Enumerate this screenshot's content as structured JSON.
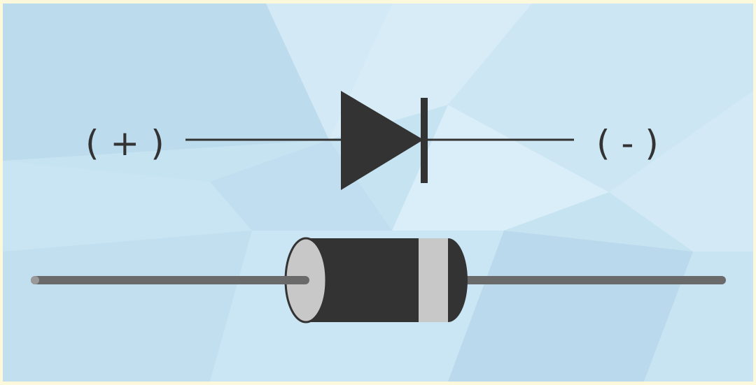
{
  "labels": {
    "anode": "( + )",
    "cathode": "( - )"
  },
  "colors": {
    "border": "#fbf8dc",
    "background_base": "#c5e3f1",
    "background_light": "#d7ecf7",
    "background_dark": "#b7d8ec",
    "symbol": "#333333",
    "lead": "#6a6a6a",
    "body": "#333333",
    "end_cap": "#c8c8c8",
    "cathode_band": "#c8c8c8"
  },
  "icons": {
    "diode_symbol": "diode-schematic-icon",
    "diode_component": "axial-diode-icon"
  }
}
